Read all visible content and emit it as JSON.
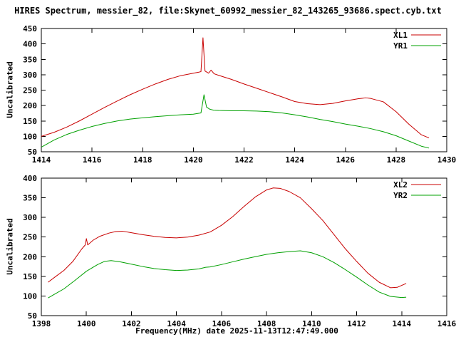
{
  "title": "HIRES Spectrum, messier_82, file:Skynet_60992_messier_82_143265_93686.spect.cyb.txt",
  "colors": {
    "red": "#c80000",
    "green": "#00a000",
    "axis": "#000000",
    "background": "#ffffff"
  },
  "chart_data": [
    {
      "type": "line",
      "xlim": [
        1414,
        1430
      ],
      "ylim": [
        50,
        450
      ],
      "xticks": [
        1414,
        1416,
        1418,
        1420,
        1422,
        1424,
        1426,
        1428,
        1430
      ],
      "yticks": [
        50,
        100,
        150,
        200,
        250,
        300,
        350,
        400,
        450
      ],
      "ylabel": "Uncalibrated",
      "xlabel": "",
      "grid": false,
      "legend_position": "top-right",
      "series": [
        {
          "name": "XL1",
          "color": "#c80000",
          "points": [
            [
              1414.0,
              100
            ],
            [
              1414.5,
              113
            ],
            [
              1415.0,
              130
            ],
            [
              1415.5,
              150
            ],
            [
              1416.0,
              172
            ],
            [
              1416.5,
              194
            ],
            [
              1417.0,
              215
            ],
            [
              1417.5,
              235
            ],
            [
              1418.0,
              253
            ],
            [
              1418.5,
              270
            ],
            [
              1419.0,
              285
            ],
            [
              1419.5,
              297
            ],
            [
              1420.0,
              305
            ],
            [
              1420.2,
              308
            ],
            [
              1420.3,
              310
            ],
            [
              1420.38,
              420
            ],
            [
              1420.46,
              312
            ],
            [
              1420.6,
              305
            ],
            [
              1420.7,
              315
            ],
            [
              1420.82,
              303
            ],
            [
              1421.0,
              298
            ],
            [
              1421.5,
              285
            ],
            [
              1422.0,
              270
            ],
            [
              1422.5,
              256
            ],
            [
              1423.0,
              242
            ],
            [
              1423.5,
              228
            ],
            [
              1424.0,
              213
            ],
            [
              1424.5,
              206
            ],
            [
              1425.0,
              203
            ],
            [
              1425.5,
              207
            ],
            [
              1426.0,
              215
            ],
            [
              1426.5,
              222
            ],
            [
              1426.8,
              225
            ],
            [
              1427.0,
              223
            ],
            [
              1427.5,
              212
            ],
            [
              1428.0,
              180
            ],
            [
              1428.5,
              140
            ],
            [
              1429.0,
              105
            ],
            [
              1429.3,
              95
            ]
          ]
        },
        {
          "name": "YR1",
          "color": "#00a000",
          "points": [
            [
              1414.0,
              65
            ],
            [
              1414.5,
              88
            ],
            [
              1415.0,
              106
            ],
            [
              1415.5,
              120
            ],
            [
              1416.0,
              132
            ],
            [
              1416.5,
              142
            ],
            [
              1417.0,
              150
            ],
            [
              1417.5,
              156
            ],
            [
              1418.0,
              160
            ],
            [
              1418.5,
              164
            ],
            [
              1419.0,
              167
            ],
            [
              1419.5,
              170
            ],
            [
              1420.0,
              172
            ],
            [
              1420.3,
              176
            ],
            [
              1420.42,
              235
            ],
            [
              1420.52,
              195
            ],
            [
              1420.65,
              188
            ],
            [
              1420.8,
              185
            ],
            [
              1421.0,
              184
            ],
            [
              1421.5,
              183
            ],
            [
              1422.0,
              183
            ],
            [
              1422.5,
              182
            ],
            [
              1423.0,
              180
            ],
            [
              1423.5,
              176
            ],
            [
              1424.0,
              170
            ],
            [
              1424.5,
              163
            ],
            [
              1425.0,
              155
            ],
            [
              1425.5,
              148
            ],
            [
              1426.0,
              140
            ],
            [
              1426.5,
              133
            ],
            [
              1427.0,
              125
            ],
            [
              1427.5,
              115
            ],
            [
              1428.0,
              102
            ],
            [
              1428.5,
              85
            ],
            [
              1429.0,
              68
            ],
            [
              1429.3,
              62
            ]
          ]
        }
      ]
    },
    {
      "type": "line",
      "xlim": [
        1398,
        1416
      ],
      "ylim": [
        50,
        400
      ],
      "xticks": [
        1398,
        1400,
        1402,
        1404,
        1406,
        1408,
        1410,
        1412,
        1414,
        1416
      ],
      "yticks": [
        50,
        100,
        150,
        200,
        250,
        300,
        350,
        400
      ],
      "ylabel": "Uncalibrated",
      "xlabel": "Frequency(MHz) date 2025-11-13T12:47:49.000",
      "grid": false,
      "legend_position": "top-right",
      "series": [
        {
          "name": "XL2",
          "color": "#c80000",
          "points": [
            [
              1398.3,
              135
            ],
            [
              1398.6,
              148
            ],
            [
              1399.0,
              165
            ],
            [
              1399.4,
              188
            ],
            [
              1399.8,
              220
            ],
            [
              1399.95,
              230
            ],
            [
              1400.0,
              246
            ],
            [
              1400.06,
              230
            ],
            [
              1400.3,
              242
            ],
            [
              1400.6,
              252
            ],
            [
              1401.0,
              260
            ],
            [
              1401.3,
              264
            ],
            [
              1401.6,
              265
            ],
            [
              1402.0,
              261
            ],
            [
              1402.5,
              256
            ],
            [
              1403.0,
              252
            ],
            [
              1403.5,
              249
            ],
            [
              1404.0,
              248
            ],
            [
              1404.5,
              250
            ],
            [
              1405.0,
              255
            ],
            [
              1405.5,
              263
            ],
            [
              1406.0,
              280
            ],
            [
              1406.5,
              302
            ],
            [
              1407.0,
              328
            ],
            [
              1407.5,
              352
            ],
            [
              1408.0,
              370
            ],
            [
              1408.3,
              375
            ],
            [
              1408.6,
              374
            ],
            [
              1409.0,
              366
            ],
            [
              1409.5,
              350
            ],
            [
              1410.0,
              322
            ],
            [
              1410.5,
              292
            ],
            [
              1411.0,
              256
            ],
            [
              1411.5,
              220
            ],
            [
              1412.0,
              188
            ],
            [
              1412.5,
              158
            ],
            [
              1413.0,
              135
            ],
            [
              1413.5,
              121
            ],
            [
              1413.8,
              122
            ],
            [
              1414.0,
              127
            ],
            [
              1414.2,
              132
            ]
          ]
        },
        {
          "name": "YR2",
          "color": "#00a000",
          "points": [
            [
              1398.3,
              95
            ],
            [
              1398.6,
              105
            ],
            [
              1399.0,
              118
            ],
            [
              1399.5,
              140
            ],
            [
              1400.0,
              163
            ],
            [
              1400.5,
              180
            ],
            [
              1400.8,
              188
            ],
            [
              1401.1,
              190
            ],
            [
              1401.5,
              187
            ],
            [
              1402.0,
              181
            ],
            [
              1402.5,
              175
            ],
            [
              1403.0,
              170
            ],
            [
              1403.5,
              167
            ],
            [
              1404.0,
              165
            ],
            [
              1404.5,
              166
            ],
            [
              1405.0,
              169
            ],
            [
              1405.3,
              173
            ],
            [
              1405.5,
              174
            ],
            [
              1406.0,
              180
            ],
            [
              1406.5,
              187
            ],
            [
              1407.0,
              194
            ],
            [
              1407.5,
              200
            ],
            [
              1408.0,
              206
            ],
            [
              1408.5,
              210
            ],
            [
              1409.0,
              213
            ],
            [
              1409.5,
              215
            ],
            [
              1410.0,
              210
            ],
            [
              1410.5,
              200
            ],
            [
              1411.0,
              185
            ],
            [
              1411.5,
              167
            ],
            [
              1412.0,
              148
            ],
            [
              1412.5,
              128
            ],
            [
              1413.0,
              110
            ],
            [
              1413.5,
              99
            ],
            [
              1414.0,
              96
            ],
            [
              1414.2,
              97
            ]
          ]
        }
      ]
    }
  ]
}
